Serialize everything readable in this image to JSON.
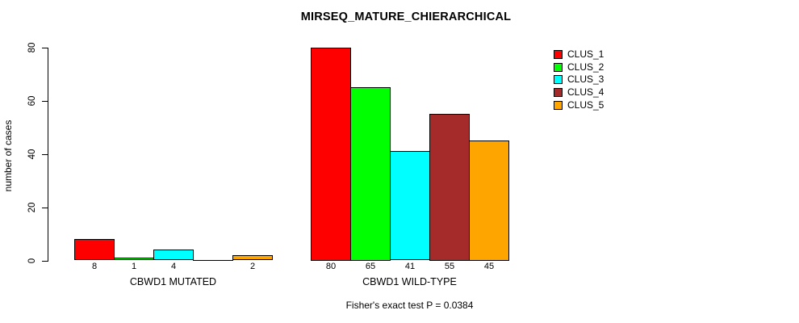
{
  "chart_data": {
    "type": "bar",
    "title": "MIRSEQ_MATURE_CHIERARCHICAL",
    "ylabel": "number of cases",
    "xlabel": "",
    "ylim": [
      0,
      80
    ],
    "yticks": [
      0,
      20,
      40,
      60,
      80
    ],
    "grid": false,
    "legend_position": "top-right",
    "categories": [
      "CBWD1 MUTATED",
      "CBWD1 WILD-TYPE"
    ],
    "series": [
      {
        "name": "CLUS_1",
        "color": "#FF0000",
        "values": [
          8,
          80
        ]
      },
      {
        "name": "CLUS_2",
        "color": "#00FF00",
        "values": [
          1,
          65
        ]
      },
      {
        "name": "CLUS_3",
        "color": "#00FFFF",
        "values": [
          4,
          41
        ]
      },
      {
        "name": "CLUS_4",
        "color": "#A52A2A",
        "values": [
          0,
          55
        ]
      },
      {
        "name": "CLUS_5",
        "color": "#FFA500",
        "values": [
          2,
          45
        ]
      }
    ],
    "bar_value_labels": {
      "CBWD1 MUTATED": [
        "8",
        "1",
        "4",
        "",
        "2"
      ],
      "CBWD1 WILD-TYPE": [
        "80",
        "65",
        "41",
        "55",
        "45"
      ]
    },
    "annotation": "Fisher's exact test P = 0.0384",
    "axis_color": "#000000",
    "background_color": "#FFFFFF"
  }
}
